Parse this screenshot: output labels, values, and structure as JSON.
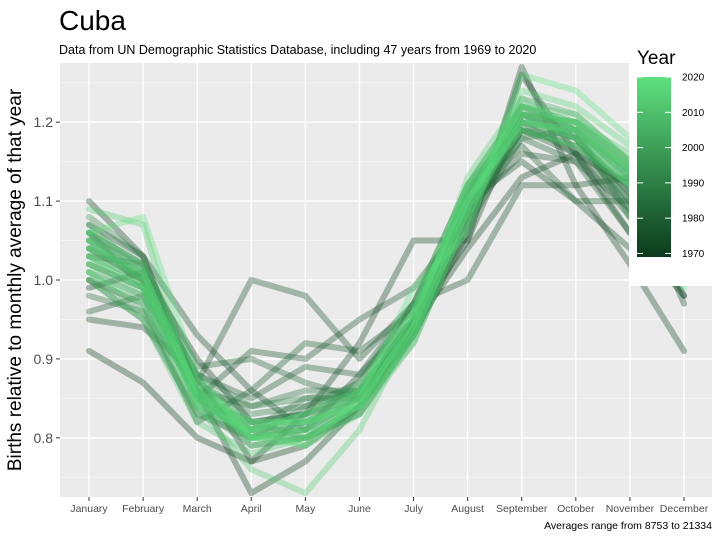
{
  "chart_data": {
    "type": "line",
    "title": "Cuba",
    "subtitle": "Data from UN Demographic Statistics Database, including 47 years from 1969 to 2020",
    "ylabel": "Births relative to monthly average of that year",
    "xlabel": "",
    "caption": "Averages range from 8753 to 21334",
    "categories": [
      "January",
      "February",
      "March",
      "April",
      "May",
      "June",
      "July",
      "August",
      "September",
      "October",
      "November",
      "December"
    ],
    "ylim": [
      0.725,
      1.275
    ],
    "yticks": [
      0.8,
      0.9,
      1.0,
      1.1,
      1.2
    ],
    "ytick_labels": [
      "0.8",
      "0.9",
      "1.0",
      "1.1",
      "1.2"
    ],
    "grid": true,
    "legend": {
      "title": "Year",
      "position": "right",
      "range": [
        1969,
        2020
      ],
      "ticks": [
        1970,
        1980,
        1990,
        2000,
        2010,
        2020
      ],
      "color_low": "#0b3a1c",
      "color_high": "#5fe07f"
    },
    "colors": {
      "panel": "#ebebeb",
      "grid_major": "#ffffff",
      "grid_minor": "#f5f5f5"
    },
    "series": [
      {
        "year": 1969,
        "values": [
          0.99,
          1.01,
          0.9,
          0.82,
          0.83,
          0.86,
          0.95,
          1.05,
          1.21,
          1.18,
          1.11,
          0.98
        ]
      },
      {
        "year": 1970,
        "values": [
          0.91,
          0.87,
          0.8,
          0.77,
          0.79,
          0.84,
          0.93,
          1.06,
          1.26,
          1.16,
          1.06,
          0.98
        ]
      },
      {
        "year": 1971,
        "values": [
          1.1,
          1.03,
          0.86,
          0.73,
          0.77,
          0.84,
          0.94,
          1.04,
          1.13,
          1.16,
          1.12,
          1.02
        ]
      },
      {
        "year": 1972,
        "values": [
          0.95,
          0.94,
          0.88,
          0.77,
          0.83,
          0.92,
          1.05,
          1.05,
          1.27,
          1.12,
          1.02,
          0.91
        ]
      },
      {
        "year": 1973,
        "values": [
          1.07,
          1.03,
          0.93,
          0.86,
          0.81,
          0.88,
          0.97,
          1.1,
          1.15,
          1.1,
          1.04,
          1.0
        ]
      },
      {
        "year": 1975,
        "values": [
          1.06,
          1.02,
          0.87,
          1.0,
          0.98,
          0.9,
          0.97,
          1.0,
          1.12,
          1.12,
          1.13,
          0.97
        ]
      },
      {
        "year": 1976,
        "values": [
          0.96,
          0.98,
          0.85,
          0.91,
          0.9,
          0.95,
          0.99,
          1.08,
          1.19,
          1.16,
          1.1,
          1.0
        ]
      },
      {
        "year": 1978,
        "values": [
          1.05,
          1.0,
          0.88,
          0.85,
          0.89,
          0.88,
          0.95,
          1.09,
          1.16,
          1.15,
          1.09,
          1.01
        ]
      },
      {
        "year": 1979,
        "values": [
          1.0,
          0.97,
          0.82,
          0.86,
          0.92,
          0.91,
          0.96,
          1.1,
          1.17,
          1.1,
          1.1,
          1.03
        ]
      },
      {
        "year": 1981,
        "values": [
          1.03,
          1.02,
          0.89,
          0.9,
          0.87,
          0.85,
          0.93,
          1.07,
          1.18,
          1.15,
          1.06,
          1.02
        ]
      },
      {
        "year": 1983,
        "values": [
          1.0,
          0.95,
          0.83,
          0.8,
          0.84,
          0.87,
          0.97,
          1.12,
          1.2,
          1.16,
          1.08,
          1.01
        ]
      },
      {
        "year": 1985,
        "values": [
          0.98,
          0.96,
          0.86,
          0.84,
          0.86,
          0.86,
          0.95,
          1.11,
          1.21,
          1.19,
          1.08,
          1.02
        ]
      },
      {
        "year": 1986,
        "values": [
          1.04,
          1.0,
          0.86,
          0.81,
          0.85,
          0.85,
          0.93,
          1.08,
          1.19,
          1.17,
          1.11,
          1.01
        ]
      },
      {
        "year": 1988,
        "values": [
          1.02,
          0.99,
          0.87,
          0.83,
          0.84,
          0.86,
          0.94,
          1.09,
          1.19,
          1.18,
          1.09,
          1.0
        ]
      },
      {
        "year": 1990,
        "values": [
          1.06,
          1.0,
          0.85,
          0.82,
          0.83,
          0.85,
          0.95,
          1.11,
          1.2,
          1.18,
          1.1,
          1.01
        ]
      },
      {
        "year": 1991,
        "values": [
          1.01,
          0.98,
          0.88,
          0.84,
          0.85,
          0.86,
          0.94,
          1.09,
          1.18,
          1.19,
          1.13,
          1.0
        ]
      },
      {
        "year": 1993,
        "values": [
          1.08,
          1.03,
          0.86,
          0.8,
          0.8,
          0.83,
          0.93,
          1.07,
          1.21,
          1.2,
          1.15,
          1.02
        ]
      },
      {
        "year": 1995,
        "values": [
          1.04,
          1.01,
          0.84,
          0.79,
          0.8,
          0.84,
          0.94,
          1.1,
          1.22,
          1.19,
          1.14,
          1.03
        ]
      },
      {
        "year": 1996,
        "values": [
          1.06,
          0.99,
          0.86,
          0.81,
          0.82,
          0.85,
          0.95,
          1.11,
          1.19,
          1.17,
          1.12,
          1.0
        ]
      },
      {
        "year": 1998,
        "values": [
          1.03,
          1.0,
          0.85,
          0.8,
          0.81,
          0.84,
          0.94,
          1.12,
          1.22,
          1.2,
          1.14,
          1.02
        ]
      },
      {
        "year": 2000,
        "values": [
          1.05,
          1.02,
          0.87,
          0.82,
          0.8,
          0.83,
          0.93,
          1.09,
          1.2,
          1.19,
          1.13,
          1.01
        ]
      },
      {
        "year": 2001,
        "values": [
          1.02,
          0.99,
          0.84,
          0.81,
          0.81,
          0.85,
          0.96,
          1.11,
          1.21,
          1.18,
          1.12,
          1.0
        ]
      },
      {
        "year": 2003,
        "values": [
          1.07,
          1.01,
          0.86,
          0.79,
          0.8,
          0.84,
          0.92,
          1.08,
          1.23,
          1.21,
          1.15,
          1.03
        ]
      },
      {
        "year": 2005,
        "values": [
          1.04,
          1.0,
          0.85,
          0.8,
          0.82,
          0.86,
          0.95,
          1.1,
          1.2,
          1.19,
          1.14,
          1.01
        ]
      },
      {
        "year": 2006,
        "values": [
          1.01,
          0.96,
          0.83,
          0.81,
          0.83,
          0.87,
          0.97,
          1.12,
          1.22,
          1.19,
          1.13,
          1.0
        ]
      },
      {
        "year": 2008,
        "values": [
          1.05,
          1.01,
          0.85,
          0.8,
          0.81,
          0.85,
          0.94,
          1.1,
          1.21,
          1.2,
          1.14,
          1.02
        ]
      },
      {
        "year": 2010,
        "values": [
          1.03,
          0.99,
          0.86,
          0.82,
          0.82,
          0.84,
          0.93,
          1.09,
          1.2,
          1.18,
          1.12,
          1.0
        ]
      },
      {
        "year": 2011,
        "values": [
          1.0,
          0.95,
          0.82,
          0.78,
          0.8,
          0.84,
          0.95,
          1.11,
          1.22,
          1.21,
          1.15,
          1.02
        ]
      },
      {
        "year": 2013,
        "values": [
          1.06,
          1.02,
          0.87,
          0.81,
          0.79,
          0.83,
          0.92,
          1.08,
          1.21,
          1.2,
          1.16,
          1.03
        ]
      },
      {
        "year": 2014,
        "values": [
          1.09,
          1.07,
          0.84,
          0.76,
          0.73,
          0.81,
          0.94,
          1.13,
          1.23,
          1.19,
          1.14,
          1.01
        ]
      },
      {
        "year": 2015,
        "values": [
          1.02,
          0.98,
          0.85,
          0.8,
          0.81,
          0.86,
          0.96,
          1.11,
          1.19,
          1.17,
          1.12,
          1.0
        ]
      },
      {
        "year": 2016,
        "values": [
          1.04,
          1.01,
          0.86,
          0.81,
          0.82,
          0.85,
          0.94,
          1.1,
          1.22,
          1.2,
          1.15,
          1.02
        ]
      },
      {
        "year": 2017,
        "values": [
          1.03,
          0.99,
          0.85,
          0.82,
          0.82,
          0.84,
          0.93,
          1.09,
          1.24,
          1.22,
          1.17,
          1.01
        ]
      },
      {
        "year": 2018,
        "values": [
          1.05,
          1.0,
          0.86,
          0.8,
          0.8,
          0.84,
          0.95,
          1.12,
          1.21,
          1.18,
          1.13,
          1.0
        ]
      },
      {
        "year": 2019,
        "values": [
          1.01,
          0.97,
          0.84,
          0.81,
          0.83,
          0.86,
          0.96,
          1.1,
          1.2,
          1.19,
          1.14,
          1.01
        ]
      },
      {
        "year": 2020,
        "values": [
          1.06,
          1.08,
          0.88,
          0.8,
          0.79,
          0.85,
          0.99,
          1.06,
          1.26,
          1.24,
          1.18,
          0.99
        ]
      }
    ]
  }
}
